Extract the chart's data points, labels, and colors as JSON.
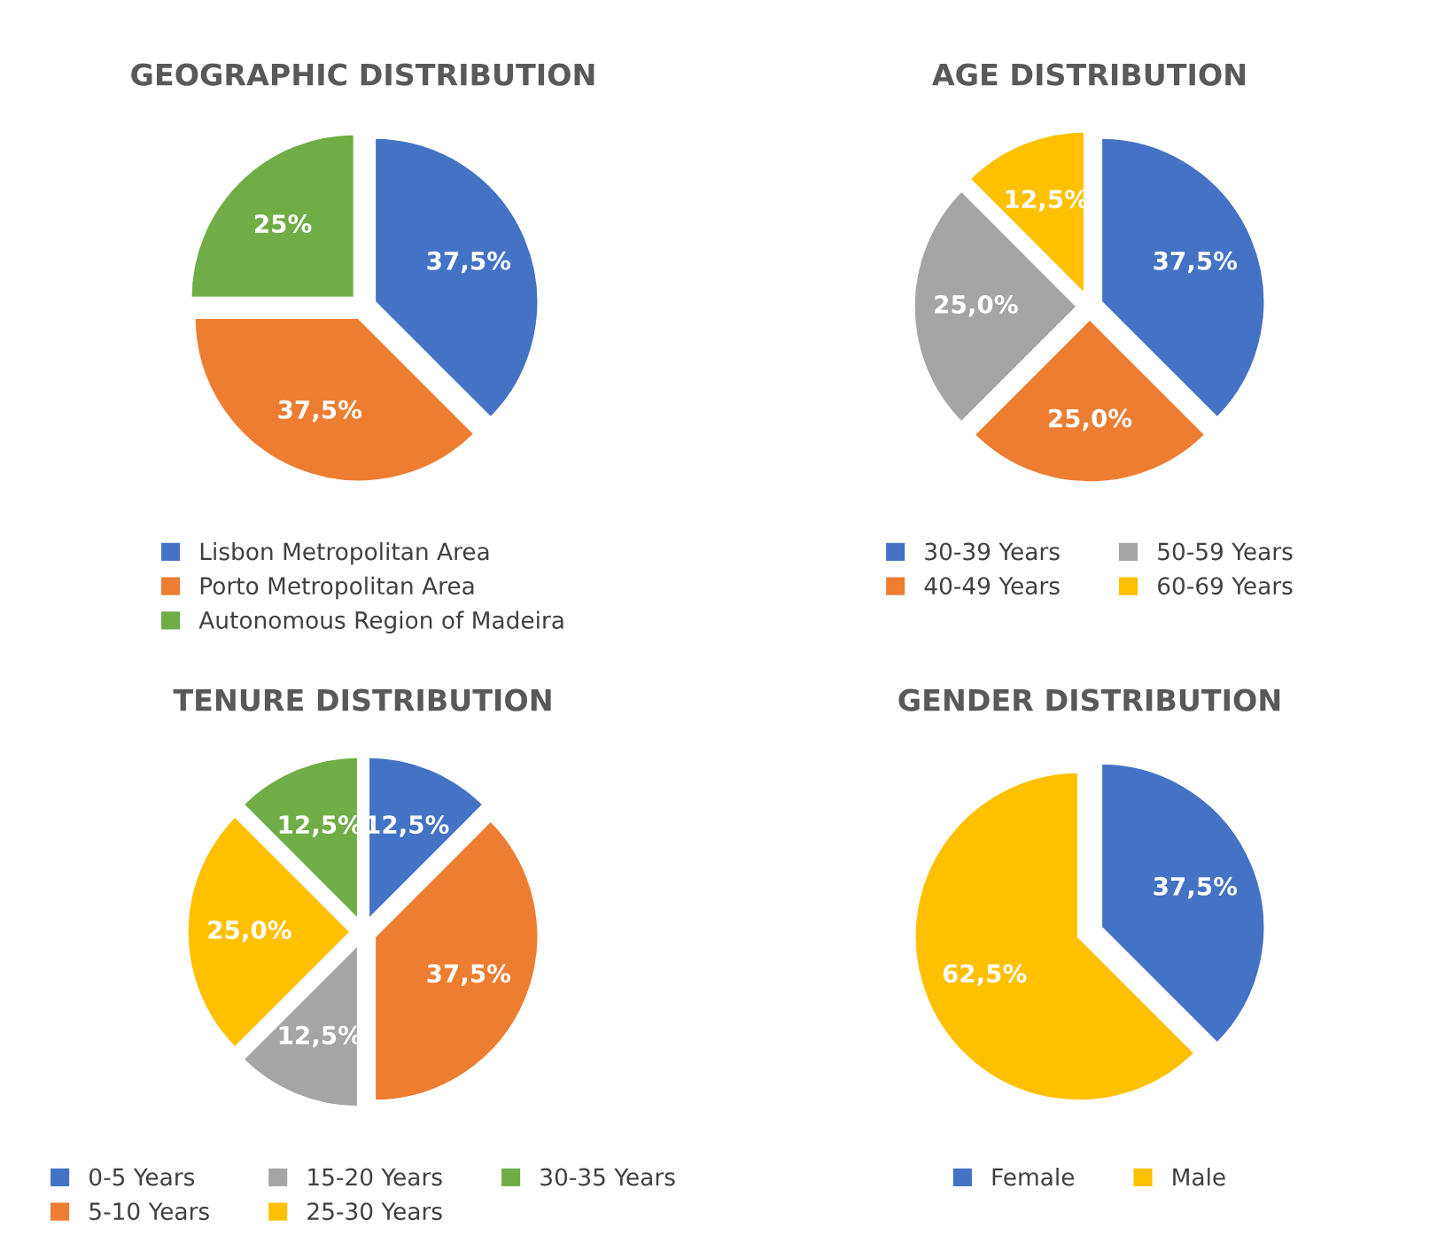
{
  "chart_data": [
    {
      "type": "pie",
      "title": "GEOGRAPHIC DISTRIBUTION",
      "categories": [
        "Lisbon Metropolitan Area",
        "Porto Metropolitan Area",
        "Autonomous Region of Madeira"
      ],
      "values": [
        37.5,
        37.5,
        25
      ],
      "colors": [
        "#4472c4",
        "#ed7d31",
        "#70ad47"
      ],
      "value_labels": [
        "37,5%",
        "37,5%",
        "25%"
      ],
      "legend": "bottom"
    },
    {
      "type": "pie",
      "title": "AGE DISTRIBUTION",
      "categories": [
        "30-39 Years",
        "40-49 Years",
        "50-59 Years",
        "60-69 Years"
      ],
      "values": [
        37.5,
        25,
        25,
        12.5
      ],
      "colors": [
        "#4472c4",
        "#ed7d31",
        "#a5a5a5",
        "#ffc000"
      ],
      "value_labels": [
        "37,5%",
        "25,0%",
        "25,0%",
        "12,5%"
      ],
      "legend": "bottom"
    },
    {
      "type": "pie",
      "title": "TENURE DISTRIBUTION",
      "categories": [
        "0-5 Years",
        "5-10 Years",
        "15-20 Years",
        "25-30 Years",
        "30-35 Years"
      ],
      "values": [
        12.5,
        37.5,
        12.5,
        25,
        12.5
      ],
      "colors": [
        "#4472c4",
        "#ed7d31",
        "#a5a5a5",
        "#ffc000",
        "#70ad47"
      ],
      "value_labels": [
        "12,5%",
        "37,5%",
        "12,5%",
        "25,0%",
        "12,5%"
      ],
      "legend": "bottom"
    },
    {
      "type": "pie",
      "title": "GENDER DISTRIBUTION",
      "categories": [
        "Female",
        "Male"
      ],
      "values": [
        37.5,
        62.5
      ],
      "colors": [
        "#4472c4",
        "#ffc000"
      ],
      "value_labels": [
        "37,5%",
        "62,5%"
      ],
      "legend": "bottom"
    }
  ]
}
